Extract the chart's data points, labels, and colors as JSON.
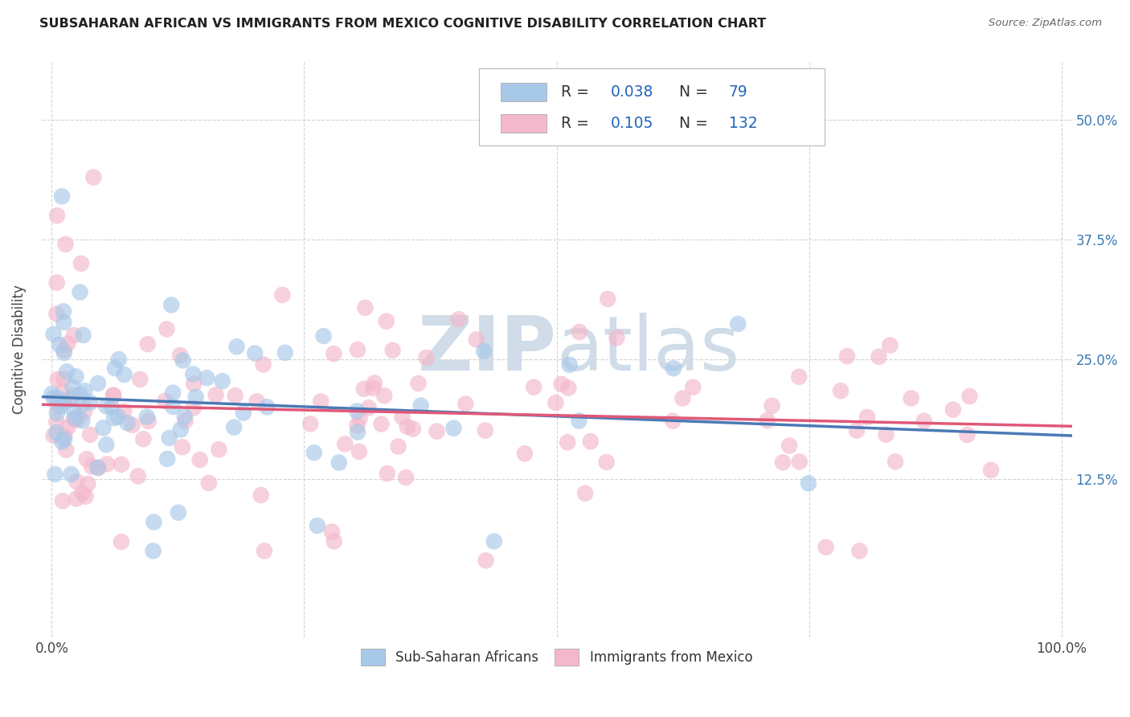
{
  "title": "SUBSAHARAN AFRICAN VS IMMIGRANTS FROM MEXICO COGNITIVE DISABILITY CORRELATION CHART",
  "source": "Source: ZipAtlas.com",
  "ylabel": "Cognitive Disability",
  "legend_label1": "Sub-Saharan Africans",
  "legend_label2": "Immigrants from Mexico",
  "R1": "0.038",
  "N1": "79",
  "R2": "0.105",
  "N2": "132",
  "color1": "#a8c8e8",
  "color2": "#f4b8cc",
  "line_color1": "#4a7ab5",
  "line_color2": "#e05878",
  "watermark_color": "#d0dce8",
  "ytick_color": "#3a7ab5",
  "xlim": [
    -0.01,
    1.01
  ],
  "ylim": [
    -0.04,
    0.56
  ]
}
